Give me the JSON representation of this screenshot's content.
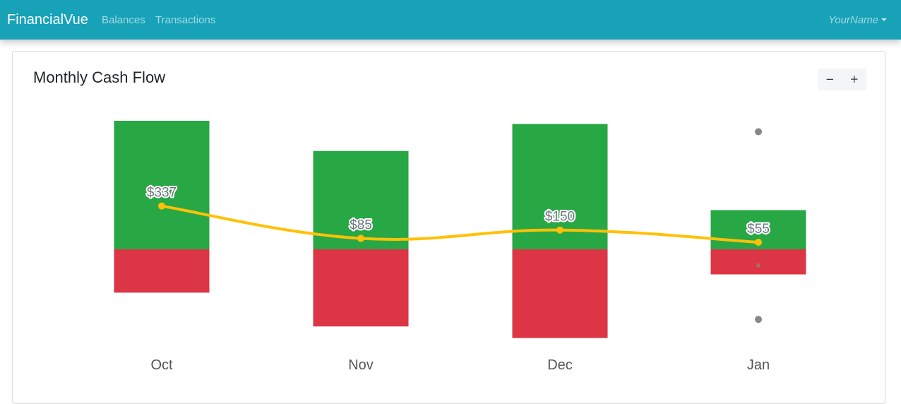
{
  "navbar": {
    "brand": "FinancialVue",
    "links": [
      {
        "label": "Balances"
      },
      {
        "label": "Transactions"
      }
    ],
    "user": "YourName"
  },
  "card": {
    "title": "Monthly Cash Flow",
    "zoom_out": "−",
    "zoom_in": "+"
  },
  "colors": {
    "navbar": "#17a2b8",
    "income": "#28a745",
    "expense": "#dc3545",
    "net_line": "#ffc107",
    "marker": "#888888"
  },
  "chart_data": {
    "type": "bar",
    "categories": [
      "Oct",
      "Nov",
      "Dec",
      "Jan"
    ],
    "series": [
      {
        "values": [
          1000,
          765,
          975,
          305
        ]
      },
      {
        "values": [
          -337,
          -600,
          -690,
          -195
        ]
      },
      {
        "values": [
          337,
          85,
          150,
          55
        ],
        "labels": [
          "$337",
          "$85",
          "$150",
          "$55"
        ]
      }
    ],
    "extra_markers": [
      {
        "category": "Jan",
        "value": 915
      },
      {
        "category": "Jan",
        "value": -125
      },
      {
        "category": "Jan",
        "value": -545
      }
    ],
    "ylim": [
      -690,
      1000
    ],
    "grid": false
  }
}
